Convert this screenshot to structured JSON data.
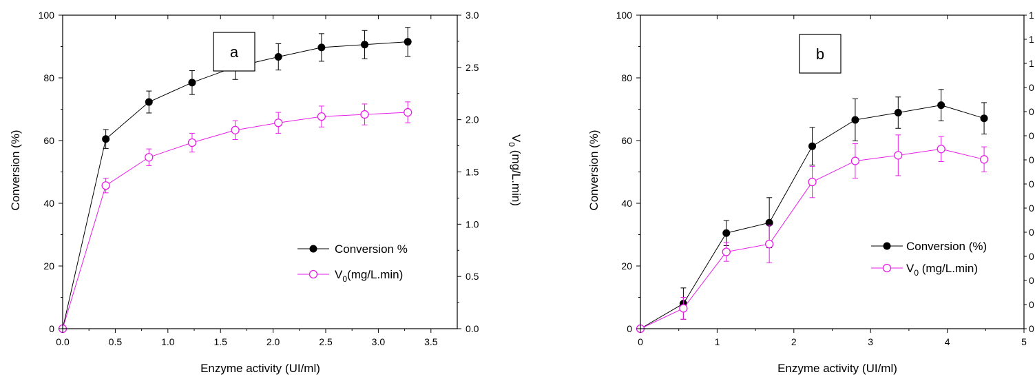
{
  "colors": {
    "conversion": "#000000",
    "v0": "#e61ee6"
  },
  "chart_data": [
    {
      "type": "line",
      "panel_label": "a",
      "xlabel": "Enzyme activity (UI/ml)",
      "ylabel": "Conversion (%)",
      "y2label_main": "V",
      "y2label_sub": "0",
      "y2label_rest": " (mg/L.min)",
      "xlim": [
        0,
        3.75
      ],
      "ylim": [
        0,
        100
      ],
      "y2lim": [
        0,
        3.0
      ],
      "xticks": [
        "0.0",
        "0.5",
        "1.0",
        "1.5",
        "2.0",
        "2.5",
        "3.0",
        "3.5"
      ],
      "yticks": [
        "0",
        "20",
        "40",
        "60",
        "80",
        "100"
      ],
      "y2ticks": [
        "0.0",
        "0.5",
        "1.0",
        "1.5",
        "2.0",
        "2.5",
        "3.0"
      ],
      "series": [
        {
          "name": "Conversion %",
          "axis": "left",
          "marker": "filled",
          "x": [
            0,
            0.41,
            0.82,
            1.23,
            1.64,
            2.05,
            2.46,
            2.87,
            3.28
          ],
          "y": [
            0,
            60.5,
            72.3,
            78.5,
            83.5,
            86.7,
            89.7,
            90.6,
            91.5
          ],
          "err": [
            0,
            3.0,
            3.5,
            3.8,
            4.0,
            4.2,
            4.4,
            4.5,
            4.6
          ]
        },
        {
          "name_main": "V",
          "name_sub": "0",
          "name_rest": "(mg/L.min)",
          "axis": "right",
          "marker": "open",
          "x": [
            0,
            0.41,
            0.82,
            1.23,
            1.64,
            2.05,
            2.46,
            2.87,
            3.28
          ],
          "y": [
            0,
            1.37,
            1.64,
            1.78,
            1.9,
            1.97,
            2.03,
            2.05,
            2.07
          ],
          "err": [
            0,
            0.07,
            0.08,
            0.09,
            0.09,
            0.1,
            0.1,
            0.1,
            0.1
          ]
        }
      ]
    },
    {
      "type": "line",
      "panel_label": "b",
      "xlabel": "Enzyme activity (UI/ml)",
      "ylabel": "Conversion (%)",
      "xlim": [
        0,
        5
      ],
      "ylim": [
        0,
        100
      ],
      "xticks": [
        "0",
        "1",
        "2",
        "3",
        "4",
        "5"
      ],
      "yticks": [
        "0",
        "20",
        "40",
        "60",
        "80",
        "100"
      ],
      "y2ticks": [
        "1",
        "1",
        "1",
        "0",
        "0",
        "0",
        "0",
        "0",
        "0",
        "0",
        "0",
        "0",
        "0",
        "0"
      ],
      "series": [
        {
          "name": "Conversion (%)",
          "marker": "filled",
          "x": [
            0,
            0.56,
            1.12,
            1.68,
            2.24,
            2.8,
            3.36,
            3.92,
            4.48
          ],
          "y": [
            0,
            8,
            30.5,
            33.8,
            58.2,
            66.6,
            68.9,
            71.3,
            67.1
          ],
          "err": [
            0,
            5,
            4,
            8,
            6,
            6.7,
            5,
            5,
            5
          ]
        },
        {
          "name_main": "V",
          "name_sub": "0",
          "name_rest": " (mg/L.min)",
          "marker": "open",
          "x": [
            0,
            0.56,
            1.12,
            1.68,
            2.24,
            2.8,
            3.36,
            3.92,
            4.48
          ],
          "y": [
            0,
            6.5,
            24.5,
            27.0,
            46.8,
            53.5,
            55.3,
            57.3,
            54.0
          ],
          "err": [
            0,
            3.5,
            3,
            6,
            5,
            5.5,
            6.5,
            4,
            4
          ]
        }
      ]
    }
  ]
}
